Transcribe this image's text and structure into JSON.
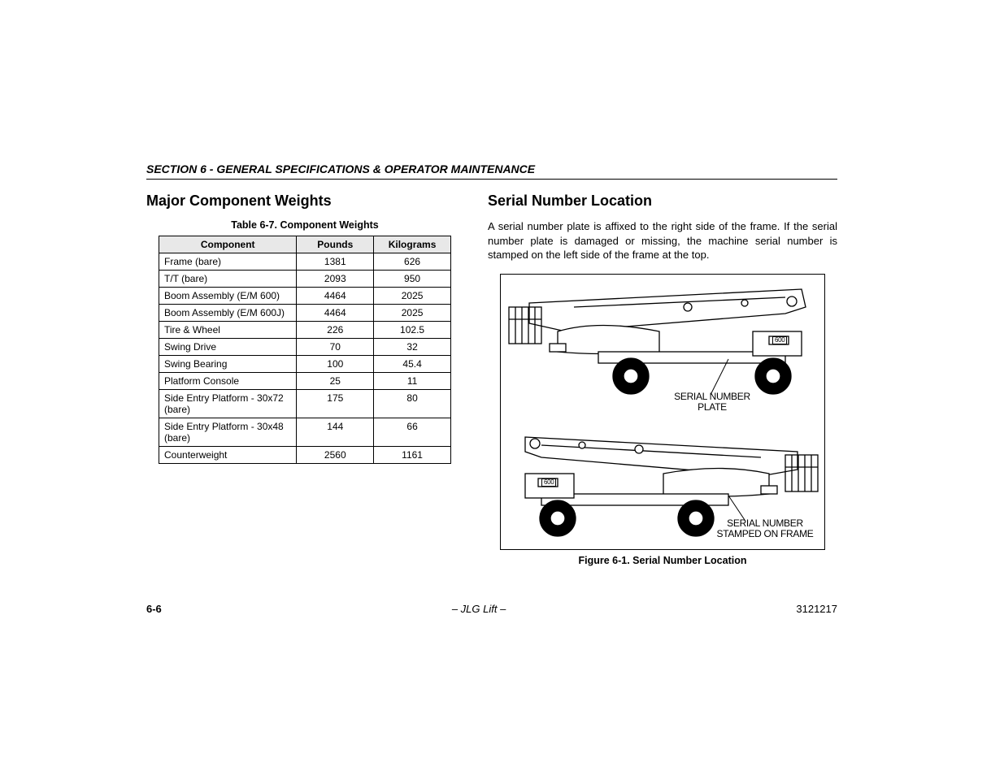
{
  "section_header": "SECTION 6 - GENERAL SPECIFICATIONS & OPERATOR MAINTENANCE",
  "left": {
    "heading": "Major Component Weights",
    "table_caption": "Table 6-7. Component Weights",
    "table": {
      "columns": [
        "Component",
        "Pounds",
        "Kilograms"
      ],
      "rows": [
        [
          "Frame (bare)",
          "1381",
          "626"
        ],
        [
          "T/T (bare)",
          "2093",
          "950"
        ],
        [
          "Boom Assembly (E/M 600)",
          "4464",
          "2025"
        ],
        [
          "Boom Assembly (E/M 600J)",
          "4464",
          "2025"
        ],
        [
          "Tire & Wheel",
          "226",
          "102.5"
        ],
        [
          "Swing Drive",
          "70",
          "32"
        ],
        [
          "Swing Bearing",
          "100",
          "45.4"
        ],
        [
          "Platform Console",
          "25",
          "11"
        ],
        [
          "Side Entry Platform - 30x72 (bare)",
          "175",
          "80"
        ],
        [
          "Side Entry Platform - 30x48 (bare)",
          "144",
          "66"
        ],
        [
          "Counterweight",
          "2560",
          "1161"
        ]
      ]
    }
  },
  "right": {
    "heading": "Serial Number Location",
    "body": "A serial number plate is affixed to the right side of the frame. If the serial number plate is damaged or missing, the machine serial number is stamped on the left side of the frame at the top.",
    "figure_caption": "Figure 6-1. Serial Number Location",
    "labels": {
      "plate_line1": "SERIAL NUMBER",
      "plate_line2": "PLATE",
      "stamp_line1": "SERIAL NUMBER",
      "stamp_line2": "STAMPED ON FRAME"
    },
    "diagram": {
      "badge_text": "600",
      "line_color": "#000000",
      "fill_color": "#ffffff",
      "wheel_color": "#000000"
    }
  },
  "footer": {
    "page": "6-6",
    "center": "– JLG Lift –",
    "doc": "3121217"
  }
}
